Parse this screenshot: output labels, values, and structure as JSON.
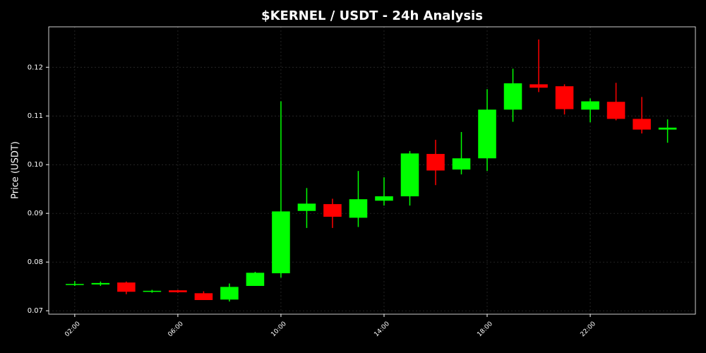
{
  "chart_data": {
    "type": "candlestick",
    "title": "$KERNEL / USDT - 24h Analysis",
    "y_label": "Price (USDT)",
    "up_color": "#00ff00",
    "down_color": "#ff0000",
    "grid": true,
    "xlim": [
      0.99,
      26.08
    ],
    "ylim": [
      0.0693,
      0.1283
    ],
    "xticks": [
      {
        "value": 2,
        "label": "02:00"
      },
      {
        "value": 6,
        "label": "06:00"
      },
      {
        "value": 10,
        "label": "10:00"
      },
      {
        "value": 14,
        "label": "14:00"
      },
      {
        "value": 18,
        "label": "18:00"
      },
      {
        "value": 22,
        "label": "22:00"
      }
    ],
    "yticks": [
      0.07,
      0.08,
      0.09,
      {
        "value": 0.1,
        "label": "0.10"
      },
      0.11,
      0.12
    ],
    "x": [
      2,
      3,
      4,
      5,
      6,
      7,
      8,
      9,
      10,
      11,
      12,
      13,
      14,
      15,
      16,
      17,
      18,
      19,
      20,
      21,
      22,
      23,
      24,
      25
    ],
    "open": [
      0.0754,
      0.0754,
      0.0758,
      0.0739,
      0.0742,
      0.0736,
      0.0723,
      0.0751,
      0.0777,
      0.0905,
      0.0919,
      0.0891,
      0.0926,
      0.0935,
      0.1022,
      0.099,
      0.1013,
      0.1113,
      0.1165,
      0.1161,
      0.1113,
      0.1129,
      0.1094,
      0.1072
    ],
    "high": [
      0.0761,
      0.076,
      0.076,
      0.0743,
      0.0743,
      0.074,
      0.0756,
      0.078,
      0.113,
      0.0952,
      0.093,
      0.0987,
      0.0974,
      0.1028,
      0.1051,
      0.1067,
      0.1155,
      0.1197,
      0.1257,
      0.1165,
      0.1136,
      0.1168,
      0.1139,
      0.1093
    ],
    "low": [
      0.0751,
      0.0751,
      0.0734,
      0.0737,
      0.0737,
      0.0722,
      0.0719,
      0.0751,
      0.0768,
      0.087,
      0.087,
      0.0872,
      0.0916,
      0.0916,
      0.0958,
      0.098,
      0.0987,
      0.1088,
      0.1149,
      0.1103,
      0.1087,
      0.1091,
      0.1064,
      0.1045
    ],
    "close": [
      0.0755,
      0.0757,
      0.0739,
      0.0741,
      0.0738,
      0.0722,
      0.0749,
      0.0778,
      0.0904,
      0.092,
      0.0893,
      0.0929,
      0.0935,
      0.1023,
      0.0988,
      0.1013,
      0.1113,
      0.1167,
      0.1158,
      0.1114,
      0.113,
      0.1094,
      0.1072,
      0.1076
    ]
  }
}
